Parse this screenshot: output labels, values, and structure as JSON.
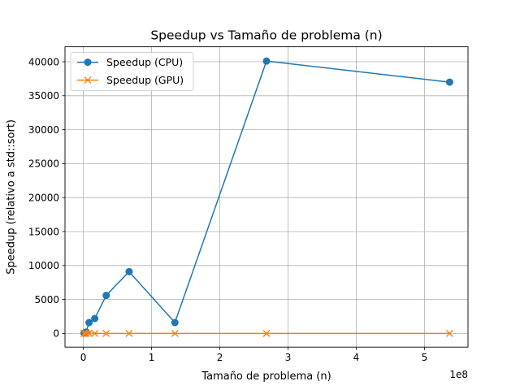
{
  "chart_data": {
    "type": "line",
    "title": "Speedup vs Tamaño de problema (n)",
    "xlabel": "Tamaño de problema (n)",
    "ylabel": "Speedup (relativo a std::sort)",
    "x_offset_label": "1e8",
    "x_scale_factor": 100000000,
    "xlim": [
      -26843545.6,
      563714457.6
    ],
    "ylim": [
      -2009,
      42200
    ],
    "xticks": [
      0,
      100000000,
      200000000,
      300000000,
      400000000,
      500000000
    ],
    "xtick_labels": [
      "0",
      "1",
      "2",
      "3",
      "4",
      "5"
    ],
    "yticks": [
      0,
      5000,
      10000,
      15000,
      20000,
      25000,
      30000,
      35000,
      40000
    ],
    "ytick_labels": [
      "0",
      "5000",
      "10000",
      "15000",
      "20000",
      "25000",
      "30000",
      "35000",
      "40000"
    ],
    "grid": true,
    "legend_position": "top-left",
    "series": [
      {
        "name": "Speedup (CPU)",
        "color": "#1f77b4",
        "marker": "circle",
        "x": [
          1048576,
          2097152,
          4194304,
          8388608,
          16777216,
          33554432,
          67108864,
          134217728,
          268435456,
          536870912
        ],
        "y": [
          50,
          100,
          200,
          1600,
          2200,
          5600,
          9100,
          1600,
          40100,
          37000
        ]
      },
      {
        "name": "Speedup (GPU)",
        "color": "#ff7f0e",
        "marker": "x",
        "x": [
          1048576,
          2097152,
          4194304,
          8388608,
          16777216,
          33554432,
          67108864,
          134217728,
          268435456,
          536870912
        ],
        "y": [
          5,
          5,
          5,
          5,
          5,
          5,
          5,
          5,
          5,
          5
        ]
      }
    ]
  }
}
